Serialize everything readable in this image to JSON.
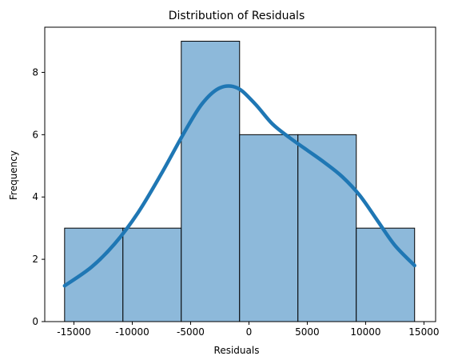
{
  "chart_data": {
    "type": "bar",
    "subtype": "histogram-with-kde",
    "title": "Distribution of Residuals",
    "xlabel": "Residuals",
    "ylabel": "Frequency",
    "xlim": [
      -17500,
      16000
    ],
    "ylim": [
      0,
      9.45
    ],
    "xticks": [
      -15000,
      -10000,
      -5000,
      0,
      5000,
      10000,
      15000
    ],
    "yticks": [
      0,
      2,
      4,
      6,
      8
    ],
    "bins": [
      {
        "x0": -15800,
        "x1": -10800,
        "count": 3
      },
      {
        "x0": -10800,
        "x1": -5800,
        "count": 3
      },
      {
        "x0": -5800,
        "x1": -800,
        "count": 9
      },
      {
        "x0": -800,
        "x1": 4200,
        "count": 6
      },
      {
        "x0": 4200,
        "x1": 9200,
        "count": 6
      },
      {
        "x0": 9200,
        "x1": 14200,
        "count": 3
      }
    ],
    "kde": {
      "x": [
        -15800,
        -13500,
        -11500,
        -9500,
        -7500,
        -5500,
        -4000,
        -2500,
        -1000,
        500,
        2000,
        3500,
        5000,
        6500,
        8000,
        9500,
        11000,
        12500,
        14200
      ],
      "y": [
        1.15,
        1.75,
        2.5,
        3.5,
        4.75,
        6.1,
        7.0,
        7.5,
        7.5,
        7.0,
        6.35,
        5.9,
        5.5,
        5.1,
        4.65,
        4.05,
        3.25,
        2.45,
        1.8
      ]
    },
    "grid": false,
    "legend": "none",
    "colors": {
      "bar_fill": "#8db9da",
      "bar_edge": "#000000",
      "kde_line": "#1f77b4"
    }
  }
}
